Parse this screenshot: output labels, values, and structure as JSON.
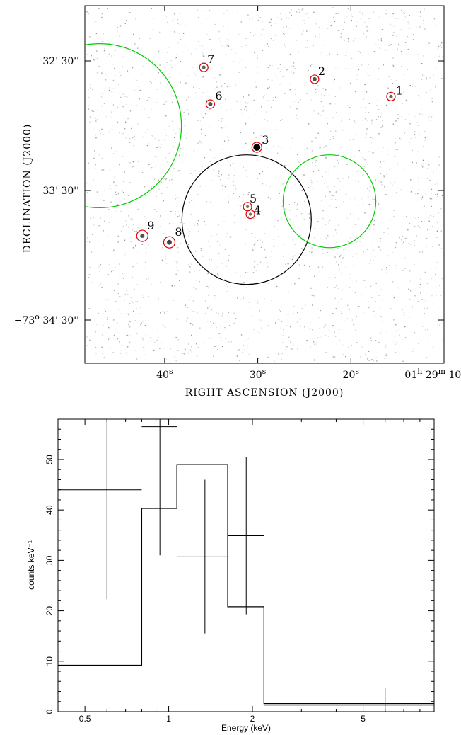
{
  "chart_data": [
    {
      "type": "scatter",
      "xlabel": "RIGHT ASCENSION (J2000)",
      "ylabel": "DECLINATION (J2000)",
      "x_ticks": [
        {
          "label": "40",
          "sup": "s"
        },
        {
          "label": "30",
          "sup": "s"
        },
        {
          "label": "20",
          "sup": "s"
        },
        {
          "label": "01",
          "sup": "h",
          "label2": "29",
          "sup2": "m",
          "label3": "10",
          "sup3": "s"
        }
      ],
      "y_ticks": [
        {
          "label": "32' 30''"
        },
        {
          "label": "33' 30''"
        },
        {
          "label": "−73",
          "sup": "o",
          "label2": "34' 30''"
        }
      ],
      "sources": [
        {
          "id": "1",
          "ra_s": 15.7,
          "dec_arcsec_from_32m30s": 16.5,
          "brightness": 0.4
        },
        {
          "id": "2",
          "ra_s": 23.9,
          "dec_arcsec_from_32m30s": 8.5,
          "brightness": 0.5
        },
        {
          "id": "3",
          "ra_s": 30.1,
          "dec_arcsec_from_32m30s": 40,
          "brightness": 1.0
        },
        {
          "id": "4",
          "ra_s": 30.8,
          "dec_arcsec_from_32m30s": 71,
          "brightness": 0.3
        },
        {
          "id": "5",
          "ra_s": 31.1,
          "dec_arcsec_from_32m30s": 67.5,
          "brightness": 0.3
        },
        {
          "id": "6",
          "ra_s": 35.1,
          "dec_arcsec_from_32m30s": 20,
          "brightness": 0.5
        },
        {
          "id": "7",
          "ra_s": 35.8,
          "dec_arcsec_from_32m30s": 3,
          "brightness": 0.4
        },
        {
          "id": "8",
          "ra_s": 39.5,
          "dec_arcsec_from_32m30s": 84,
          "brightness": 0.6
        },
        {
          "id": "9",
          "ra_s": 42.4,
          "dec_arcsec_from_32m30s": 81,
          "brightness": 0.5
        }
      ],
      "regions": [
        {
          "shape": "circle",
          "color": "#000000",
          "ra_s": 31.2,
          "dec_arcsec_from_32m30s": 73.5,
          "radius_arcsec": 30
        },
        {
          "shape": "circle",
          "color": "#00cc00",
          "ra_s": 22.3,
          "dec_arcsec_from_32m30s": 65,
          "radius_arcsec": 21.5
        },
        {
          "shape": "circle",
          "color": "#00cc00",
          "ra_s": 47,
          "dec_arcsec_from_32m30s": 30,
          "radius_arcsec": 38
        }
      ],
      "colors": {
        "source_circle": "#e00000"
      }
    },
    {
      "type": "line",
      "xlabel": "Energy (keV)",
      "ylabel": "counts keV⁻¹",
      "xscale": "log",
      "xlim": [
        0.4,
        9.0
      ],
      "ylim": [
        0,
        58
      ],
      "x_ticks": [
        0.5,
        1,
        2,
        5
      ],
      "y_ticks": [
        0,
        10,
        20,
        30,
        40,
        50
      ],
      "model_step": {
        "edges": [
          0.4,
          0.8,
          1.07,
          1.63,
          2.2,
          9.0
        ],
        "values": [
          9.2,
          40.3,
          49.0,
          20.8,
          1.6
        ]
      },
      "data_points": [
        {
          "x": 0.6,
          "xlo": 0.4,
          "xhi": 0.8,
          "y": 44.0,
          "ylo": 22.3,
          "yhi": 58
        },
        {
          "x": 0.93,
          "xlo": 0.8,
          "xhi": 1.07,
          "y": 56.5,
          "ylo": 31.0,
          "yhi": 58
        },
        {
          "x": 1.35,
          "xlo": 1.07,
          "xhi": 1.63,
          "y": 30.7,
          "ylo": 15.5,
          "yhi": 46.0
        },
        {
          "x": 1.9,
          "xlo": 1.63,
          "xhi": 2.2,
          "y": 34.9,
          "ylo": 19.3,
          "yhi": 50.5
        },
        {
          "x": 6.0,
          "xlo": 2.2,
          "xhi": 9.0,
          "y": 1.3,
          "ylo": 0,
          "yhi": 4.6
        }
      ]
    }
  ]
}
